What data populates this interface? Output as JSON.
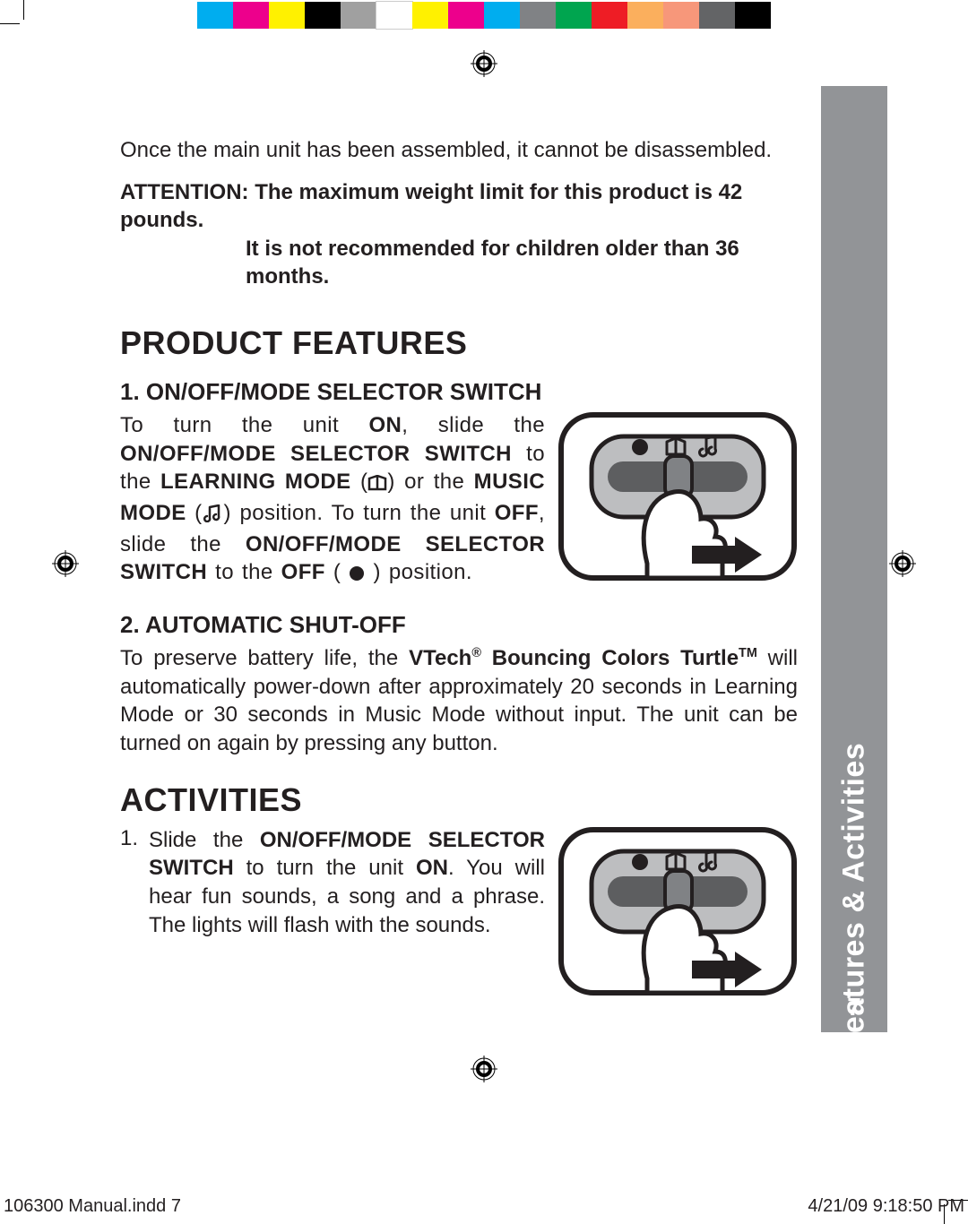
{
  "color_bar_colors": [
    "#00adef",
    "#ed008c",
    "#fff100",
    "#000000",
    "#a0a0a0",
    "#ffffff",
    "#fff100",
    "#ed008c",
    "#00adef",
    "#808285",
    "#00a54f",
    "#ee1d25",
    "#fbaf5d",
    "#f7977a",
    "#636466",
    "#000000"
  ],
  "intro": "Once the main unit has been assembled, it cannot be disassembled.",
  "attention_line1": "ATTENTION: The maximum weight limit for this product is 42 pounds.",
  "attention_line2": "It is not recommended for children older than 36 months.",
  "heading_features": "PRODUCT FEATURES",
  "feature1_title": "1.  ON/OFF/MODE SELECTOR SWITCH",
  "feature1_p1a": "To turn the unit ",
  "feature1_on": "ON",
  "feature1_p1b": ", slide the ",
  "feature1_switch": "ON/OFF/MODE SELECTOR SWITCH",
  "feature1_p1c": " to the ",
  "feature1_learn": "LEARNING MODE",
  "feature1_p1d": " (",
  "feature1_p1e": ") or the ",
  "feature1_music": "MUSIC MODE",
  "feature1_p1f": " (",
  "feature1_p1g": ") position.  To turn the unit ",
  "feature1_off": "OFF",
  "feature1_p1h": ", slide the ",
  "feature1_switch2": "ON/OFF/MODE SELECTOR SWITCH",
  "feature1_p1i": " to the ",
  "feature1_offpos": "OFF",
  "feature1_p1j": " ( ",
  "feature1_p1k": " ) position.",
  "feature2_title": "2.  AUTOMATIC SHUT-OFF",
  "feature2_p_a": "To preserve battery life, the ",
  "feature2_brand": "VTech",
  "feature2_reg": "®",
  "feature2_prod": " Bouncing Colors Turtle",
  "feature2_tm": "TM",
  "feature2_p_b": " will automatically power-down after approximately 20 seconds in Learning Mode or 30 seconds in Music Mode without input. The unit can be turned on again by pressing any button.",
  "heading_activities": "ACTIVITIES",
  "act1_num": "1.",
  "act1_a": "Slide the ",
  "act1_switch": "ON/OFF/MODE SELECTOR SWITCH",
  "act1_b": " to turn the unit ",
  "act1_on": "ON",
  "act1_c": ". You will hear fun sounds, a song and a phrase. The lights will flash with the sounds.",
  "sidebar_title": "Product Features & Activities",
  "sidebar_page": "7",
  "footer_left": "106300 Manual.indd   7",
  "footer_right": "4/21/09   9:18:50 PM",
  "svg": {
    "switch_bg": "#BDBEC0",
    "switch_slot": "#5d5e60",
    "switch_tab": "#808285",
    "arrow": "#231f20"
  }
}
